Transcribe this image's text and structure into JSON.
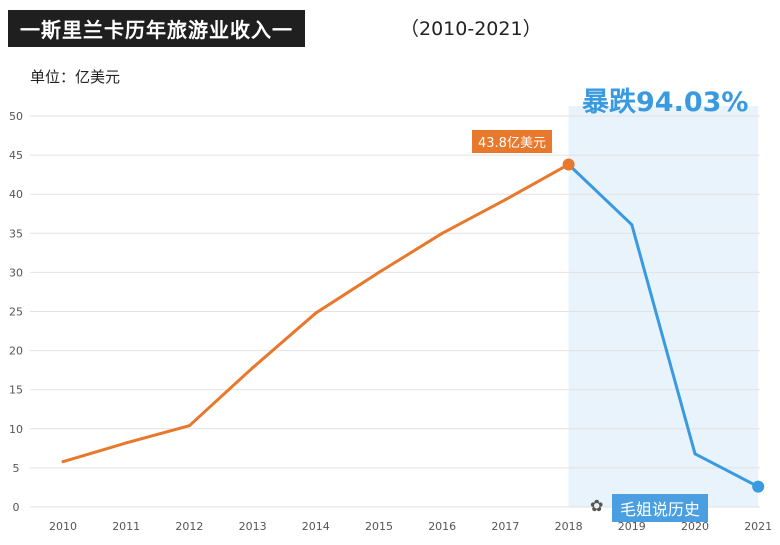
{
  "header": {
    "title": "一斯里兰卡历年旅游业收入一",
    "period": "（2010-2021）",
    "unit": "单位：亿美元"
  },
  "annotations": {
    "drop": "暴跌94.03%",
    "peak": "43.8亿美元",
    "watermark": "毛姐说历史",
    "watermark_icon": "wechat-icon"
  },
  "colors": {
    "rise": "#e8782b",
    "fall": "#3a9ae0",
    "highlight": "#e8f3fc"
  },
  "chart_data": {
    "type": "line",
    "x": [
      "2010",
      "2011",
      "2012",
      "2013",
      "2014",
      "2015",
      "2016",
      "2017",
      "2018",
      "2019",
      "2020",
      "2021"
    ],
    "yticks": [
      0,
      5,
      10,
      15,
      20,
      25,
      30,
      35,
      40,
      45,
      50
    ],
    "ylim": [
      0,
      50
    ],
    "grid": true,
    "series": [
      {
        "values": [
          5.8,
          8.2,
          10.4,
          17.8,
          24.8,
          30.0,
          35.0,
          39.3,
          43.8,
          36.1,
          6.8,
          2.6
        ]
      }
    ]
  }
}
